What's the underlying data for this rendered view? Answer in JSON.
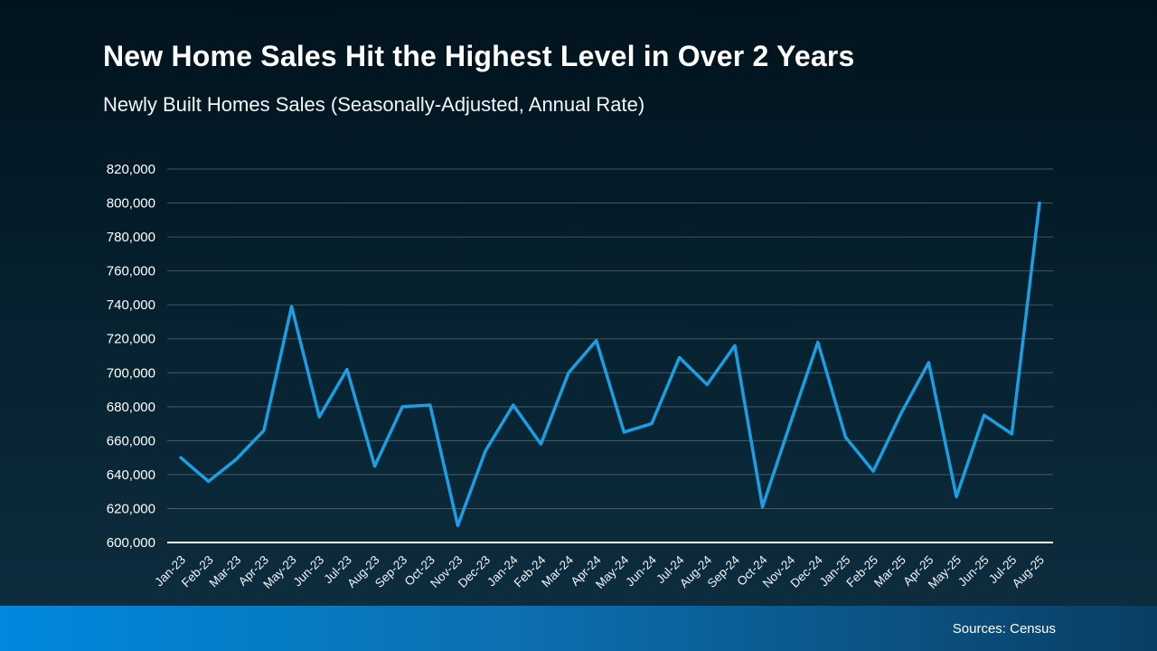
{
  "colors": {
    "line": "#1B9FE3",
    "grid": "rgba(255,255,255,0.25)",
    "axis": "#FFFFFF",
    "footer_gradient_start": "#0089DE",
    "footer_gradient_end": "#0A3E63"
  },
  "footer": {
    "source": "Sources: Census"
  },
  "chart_data": {
    "type": "line",
    "title": "New Home Sales Hit the Highest Level in Over 2 Years",
    "subtitle": "Newly Built Homes Sales (Seasonally-Adjusted, Annual Rate)",
    "xlabel": "",
    "ylabel": "",
    "ylim": [
      600000,
      820000
    ],
    "ytick_step": 20000,
    "grid": true,
    "legend_position": "none",
    "categories": [
      "Jan-23",
      "Feb-23",
      "Mar-23",
      "Apr-23",
      "May-23",
      "Jun-23",
      "Jul-23",
      "Aug-23",
      "Sep-23",
      "Oct-23",
      "Nov-23",
      "Dec-23",
      "Jan-24",
      "Feb-24",
      "Mar-24",
      "Apr-24",
      "May-24",
      "Jun-24",
      "Jul-24",
      "Aug-24",
      "Sep-24",
      "Oct-24",
      "Nov-24",
      "Dec-24",
      "Jan-25",
      "Feb-25",
      "Mar-25",
      "Apr-25",
      "May-25",
      "Jun-25",
      "Jul-25",
      "Aug-25"
    ],
    "values": [
      650000,
      636000,
      649000,
      666000,
      739000,
      674000,
      702000,
      645000,
      680000,
      681000,
      610000,
      654000,
      681000,
      658000,
      700000,
      719000,
      665000,
      670000,
      709000,
      693000,
      716000,
      621000,
      670000,
      718000,
      662000,
      642000,
      676000,
      706000,
      627000,
      675000,
      664000,
      800000
    ]
  }
}
